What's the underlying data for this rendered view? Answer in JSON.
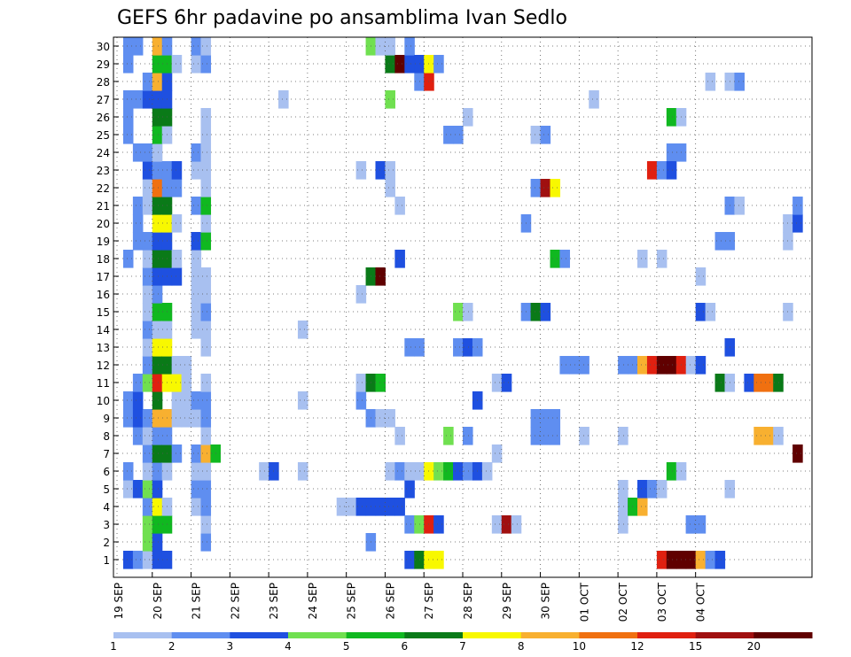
{
  "chart_data": {
    "type": "heatmap",
    "title": "GEFS 6hr padavine po ansamblima Ivan Sedlo",
    "xlabel": "",
    "ylabel": "",
    "y_ticks": [
      "1",
      "2",
      "3",
      "4",
      "5",
      "6",
      "7",
      "8",
      "9",
      "10",
      "11",
      "12",
      "13",
      "14",
      "15",
      "16",
      "17",
      "18",
      "19",
      "20",
      "21",
      "22",
      "23",
      "24",
      "25",
      "26",
      "27",
      "28",
      "29",
      "30"
    ],
    "x_ticks": [
      "19 SEP",
      "20 SEP",
      "21 SEP",
      "22 SEP",
      "23 SEP",
      "24 SEP",
      "25 SEP",
      "26 SEP",
      "27 SEP",
      "28 SEP",
      "29 SEP",
      "30 SEP",
      "01 OCT",
      "02 OCT",
      "03 OCT",
      "04 OCT"
    ],
    "grid": true,
    "colorbar": {
      "labels": [
        "1",
        "2",
        "3",
        "4",
        "5",
        "6",
        "7",
        "8",
        "10",
        "12",
        "15",
        "20"
      ],
      "colors": [
        "#a8c0f0",
        "#5f8ef0",
        "#1f50e0",
        "#70e050",
        "#10b820",
        "#0a7a18",
        "#f8f800",
        "#f8b030",
        "#f07010",
        "#e02010",
        "#a01010",
        "#600000"
      ]
    },
    "cells": [
      [
        1,
        1,
        3
      ],
      [
        2,
        1,
        2
      ],
      [
        3,
        1,
        1
      ],
      [
        3,
        2,
        4
      ],
      [
        3,
        3,
        4
      ],
      [
        3,
        4,
        2
      ],
      [
        1,
        5,
        1
      ],
      [
        2,
        5,
        3
      ],
      [
        3,
        5,
        4
      ],
      [
        1,
        6,
        2
      ],
      [
        3,
        6,
        1
      ],
      [
        3,
        7,
        2
      ],
      [
        2,
        8,
        2
      ],
      [
        3,
        8,
        1
      ],
      [
        1,
        9,
        2
      ],
      [
        2,
        9,
        3
      ],
      [
        3,
        9,
        2
      ],
      [
        1,
        10,
        2
      ],
      [
        2,
        10,
        3
      ],
      [
        2,
        11,
        2
      ],
      [
        3,
        11,
        4
      ],
      [
        3,
        12,
        2
      ],
      [
        3,
        13,
        1
      ],
      [
        3,
        14,
        2
      ],
      [
        3,
        15,
        1
      ],
      [
        3,
        16,
        1
      ],
      [
        3,
        17,
        2
      ],
      [
        1,
        18,
        2
      ],
      [
        3,
        18,
        1
      ],
      [
        2,
        19,
        2
      ],
      [
        3,
        19,
        2
      ],
      [
        2,
        20,
        2
      ],
      [
        2,
        21,
        2
      ],
      [
        3,
        21,
        1
      ],
      [
        3,
        22,
        1
      ],
      [
        3,
        23,
        3
      ],
      [
        2,
        24,
        2
      ],
      [
        3,
        24,
        2
      ],
      [
        1,
        25,
        2
      ],
      [
        1,
        26,
        2
      ],
      [
        1,
        27,
        2
      ],
      [
        2,
        27,
        2
      ],
      [
        3,
        27,
        3
      ],
      [
        3,
        28,
        2
      ],
      [
        1,
        29,
        2
      ],
      [
        1,
        30,
        2
      ],
      [
        2,
        30,
        2
      ],
      [
        4,
        1,
        3
      ],
      [
        4,
        2,
        3
      ],
      [
        4,
        3,
        5
      ],
      [
        4,
        4,
        7
      ],
      [
        4,
        5,
        3
      ],
      [
        4,
        6,
        2
      ],
      [
        4,
        7,
        6
      ],
      [
        4,
        8,
        2
      ],
      [
        4,
        9,
        8
      ],
      [
        4,
        10,
        6
      ],
      [
        4,
        11,
        10
      ],
      [
        4,
        12,
        6
      ],
      [
        4,
        13,
        7
      ],
      [
        4,
        14,
        1
      ],
      [
        4,
        15,
        5
      ],
      [
        4,
        16,
        2
      ],
      [
        4,
        17,
        3
      ],
      [
        4,
        18,
        6
      ],
      [
        4,
        19,
        3
      ],
      [
        4,
        20,
        7
      ],
      [
        4,
        21,
        6
      ],
      [
        4,
        22,
        9
      ],
      [
        4,
        23,
        2
      ],
      [
        4,
        24,
        1
      ],
      [
        4,
        25,
        5
      ],
      [
        4,
        26,
        6
      ],
      [
        4,
        27,
        3
      ],
      [
        4,
        28,
        8
      ],
      [
        4,
        29,
        5
      ],
      [
        4,
        30,
        8
      ],
      [
        5,
        1,
        3
      ],
      [
        5,
        3,
        5
      ],
      [
        5,
        4,
        1
      ],
      [
        5,
        6,
        1
      ],
      [
        5,
        7,
        6
      ],
      [
        5,
        8,
        2
      ],
      [
        5,
        9,
        8
      ],
      [
        5,
        11,
        7
      ],
      [
        5,
        12,
        6
      ],
      [
        5,
        13,
        7
      ],
      [
        5,
        14,
        1
      ],
      [
        5,
        15,
        5
      ],
      [
        5,
        17,
        3
      ],
      [
        5,
        18,
        6
      ],
      [
        5,
        19,
        3
      ],
      [
        5,
        20,
        7
      ],
      [
        5,
        21,
        6
      ],
      [
        5,
        22,
        2
      ],
      [
        5,
        23,
        2
      ],
      [
        5,
        25,
        1
      ],
      [
        5,
        26,
        6
      ],
      [
        5,
        27,
        3
      ],
      [
        5,
        28,
        3
      ],
      [
        5,
        29,
        5
      ],
      [
        5,
        30,
        2
      ],
      [
        6,
        7,
        2
      ],
      [
        6,
        9,
        1
      ],
      [
        6,
        10,
        1
      ],
      [
        6,
        11,
        7
      ],
      [
        6,
        12,
        1
      ],
      [
        6,
        17,
        3
      ],
      [
        6,
        18,
        1
      ],
      [
        6,
        20,
        1
      ],
      [
        6,
        22,
        2
      ],
      [
        6,
        23,
        3
      ],
      [
        6,
        29,
        1
      ],
      [
        7,
        9,
        1
      ],
      [
        7,
        10,
        1
      ],
      [
        7,
        11,
        1
      ],
      [
        7,
        12,
        1
      ],
      [
        8,
        4,
        1
      ],
      [
        8,
        5,
        2
      ],
      [
        8,
        6,
        1
      ],
      [
        8,
        7,
        2
      ],
      [
        8,
        9,
        1
      ],
      [
        8,
        10,
        2
      ],
      [
        8,
        14,
        1
      ],
      [
        8,
        15,
        1
      ],
      [
        8,
        16,
        1
      ],
      [
        8,
        17,
        1
      ],
      [
        8,
        18,
        1
      ],
      [
        8,
        19,
        3
      ],
      [
        8,
        21,
        2
      ],
      [
        8,
        23,
        1
      ],
      [
        8,
        24,
        2
      ],
      [
        8,
        29,
        1
      ],
      [
        8,
        30,
        2
      ],
      [
        9,
        2,
        2
      ],
      [
        9,
        3,
        1
      ],
      [
        9,
        4,
        2
      ],
      [
        9,
        5,
        2
      ],
      [
        9,
        6,
        1
      ],
      [
        9,
        7,
        8
      ],
      [
        9,
        8,
        1
      ],
      [
        9,
        9,
        2
      ],
      [
        9,
        10,
        2
      ],
      [
        9,
        11,
        1
      ],
      [
        9,
        13,
        1
      ],
      [
        9,
        14,
        1
      ],
      [
        9,
        15,
        2
      ],
      [
        9,
        16,
        1
      ],
      [
        9,
        17,
        1
      ],
      [
        9,
        19,
        5
      ],
      [
        9,
        20,
        1
      ],
      [
        9,
        21,
        5
      ],
      [
        9,
        22,
        1
      ],
      [
        9,
        23,
        1
      ],
      [
        9,
        24,
        1
      ],
      [
        9,
        25,
        1
      ],
      [
        9,
        26,
        1
      ],
      [
        9,
        29,
        2
      ],
      [
        9,
        30,
        1
      ],
      [
        10,
        7,
        5
      ],
      [
        15,
        6,
        1
      ],
      [
        16,
        6,
        3
      ],
      [
        17,
        27,
        1
      ],
      [
        19,
        6,
        1
      ],
      [
        19,
        10,
        1
      ],
      [
        19,
        14,
        1
      ],
      [
        23,
        4,
        1
      ],
      [
        24,
        4,
        1
      ],
      [
        25,
        4,
        3
      ],
      [
        25,
        10,
        2
      ],
      [
        25,
        11,
        1
      ],
      [
        25,
        16,
        1
      ],
      [
        25,
        23,
        1
      ],
      [
        26,
        2,
        2
      ],
      [
        26,
        4,
        3
      ],
      [
        26,
        9,
        2
      ],
      [
        26,
        11,
        6
      ],
      [
        26,
        17,
        6
      ],
      [
        26,
        30,
        4
      ],
      [
        27,
        4,
        3
      ],
      [
        27,
        9,
        1
      ],
      [
        27,
        11,
        5
      ],
      [
        27,
        17,
        12
      ],
      [
        27,
        23,
        3
      ],
      [
        27,
        30,
        1
      ],
      [
        28,
        4,
        3
      ],
      [
        28,
        6,
        1
      ],
      [
        28,
        9,
        1
      ],
      [
        28,
        22,
        1
      ],
      [
        28,
        23,
        1
      ],
      [
        28,
        27,
        4
      ],
      [
        28,
        29,
        6
      ],
      [
        28,
        30,
        1
      ],
      [
        29,
        4,
        3
      ],
      [
        29,
        6,
        2
      ],
      [
        29,
        8,
        1
      ],
      [
        29,
        18,
        3
      ],
      [
        29,
        21,
        1
      ],
      [
        29,
        29,
        12
      ],
      [
        30,
        1,
        3
      ],
      [
        30,
        3,
        2
      ],
      [
        30,
        5,
        3
      ],
      [
        30,
        6,
        1
      ],
      [
        30,
        13,
        2
      ],
      [
        30,
        29,
        3
      ],
      [
        30,
        30,
        2
      ],
      [
        31,
        1,
        6
      ],
      [
        31,
        3,
        4
      ],
      [
        31,
        6,
        1
      ],
      [
        31,
        13,
        2
      ],
      [
        31,
        28,
        2
      ],
      [
        31,
        29,
        3
      ],
      [
        32,
        1,
        7
      ],
      [
        32,
        3,
        10
      ],
      [
        32,
        6,
        7
      ],
      [
        32,
        28,
        10
      ],
      [
        32,
        29,
        7
      ],
      [
        33,
        1,
        7
      ],
      [
        33,
        3,
        3
      ],
      [
        33,
        6,
        4
      ],
      [
        33,
        29,
        2
      ],
      [
        34,
        6,
        5
      ],
      [
        34,
        8,
        4
      ],
      [
        34,
        25,
        2
      ],
      [
        35,
        6,
        3
      ],
      [
        35,
        13,
        2
      ],
      [
        35,
        15,
        4
      ],
      [
        35,
        25,
        2
      ],
      [
        36,
        6,
        2
      ],
      [
        36,
        8,
        2
      ],
      [
        36,
        13,
        3
      ],
      [
        36,
        15,
        1
      ],
      [
        36,
        26,
        1
      ],
      [
        37,
        6,
        3
      ],
      [
        37,
        10,
        3
      ],
      [
        37,
        13,
        2
      ],
      [
        38,
        6,
        1
      ],
      [
        39,
        3,
        1
      ],
      [
        39,
        7,
        1
      ],
      [
        39,
        11,
        1
      ],
      [
        40,
        11,
        3
      ],
      [
        40,
        3,
        11
      ],
      [
        41,
        3,
        1
      ],
      [
        42,
        15,
        2
      ],
      [
        42,
        20,
        2
      ],
      [
        43,
        8,
        2
      ],
      [
        43,
        9,
        2
      ],
      [
        43,
        15,
        6
      ],
      [
        43,
        22,
        2
      ],
      [
        43,
        25,
        1
      ],
      [
        44,
        8,
        2
      ],
      [
        44,
        9,
        2
      ],
      [
        44,
        15,
        3
      ],
      [
        44,
        22,
        11
      ],
      [
        44,
        25,
        2
      ],
      [
        45,
        8,
        2
      ],
      [
        45,
        9,
        2
      ],
      [
        45,
        18,
        5
      ],
      [
        45,
        22,
        7
      ],
      [
        46,
        12,
        2
      ],
      [
        46,
        18,
        2
      ],
      [
        47,
        12,
        2
      ],
      [
        48,
        12,
        2
      ],
      [
        48,
        8,
        1
      ],
      [
        49,
        27,
        1
      ],
      [
        52,
        12,
        2
      ],
      [
        52,
        3,
        1
      ],
      [
        52,
        4,
        1
      ],
      [
        52,
        5,
        1
      ],
      [
        52,
        8,
        1
      ],
      [
        53,
        4,
        5
      ],
      [
        53,
        12,
        2
      ],
      [
        54,
        4,
        8
      ],
      [
        54,
        5,
        3
      ],
      [
        54,
        12,
        8
      ],
      [
        54,
        18,
        1
      ],
      [
        55,
        5,
        2
      ],
      [
        55,
        12,
        10
      ],
      [
        55,
        23,
        10
      ],
      [
        56,
        5,
        1
      ],
      [
        56,
        12,
        12
      ],
      [
        56,
        1,
        10
      ],
      [
        56,
        18,
        1
      ],
      [
        56,
        23,
        2
      ],
      [
        57,
        6,
        5
      ],
      [
        57,
        1,
        12
      ],
      [
        57,
        12,
        12
      ],
      [
        57,
        26,
        5
      ],
      [
        57,
        24,
        2
      ],
      [
        57,
        23,
        3
      ],
      [
        58,
        6,
        1
      ],
      [
        58,
        1,
        12
      ],
      [
        58,
        12,
        10
      ],
      [
        58,
        26,
        1
      ],
      [
        58,
        24,
        2
      ],
      [
        59,
        1,
        12
      ],
      [
        59,
        3,
        2
      ],
      [
        59,
        3,
        2
      ],
      [
        59,
        12,
        1
      ],
      [
        60,
        1,
        8
      ],
      [
        60,
        3,
        2
      ],
      [
        60,
        12,
        3
      ],
      [
        60,
        15,
        3
      ],
      [
        60,
        17,
        1
      ],
      [
        61,
        1,
        2
      ],
      [
        61,
        15,
        1
      ],
      [
        61,
        28,
        1
      ],
      [
        62,
        1,
        3
      ],
      [
        62,
        11,
        6
      ],
      [
        62,
        19,
        2
      ],
      [
        63,
        11,
        1
      ],
      [
        63,
        19,
        2
      ],
      [
        63,
        5,
        1
      ],
      [
        63,
        13,
        3
      ],
      [
        63,
        21,
        2
      ],
      [
        63,
        28,
        1
      ],
      [
        64,
        21,
        1
      ],
      [
        64,
        28,
        2
      ],
      [
        65,
        11,
        3
      ],
      [
        66,
        11,
        9
      ],
      [
        66,
        8,
        8
      ],
      [
        67,
        11,
        9
      ],
      [
        67,
        8,
        8
      ],
      [
        68,
        11,
        6
      ],
      [
        68,
        8,
        1
      ],
      [
        69,
        20,
        1
      ],
      [
        69,
        15,
        1
      ],
      [
        69,
        19,
        1
      ],
      [
        70,
        20,
        3
      ],
      [
        70,
        21,
        2
      ],
      [
        70,
        7,
        12
      ]
    ]
  }
}
